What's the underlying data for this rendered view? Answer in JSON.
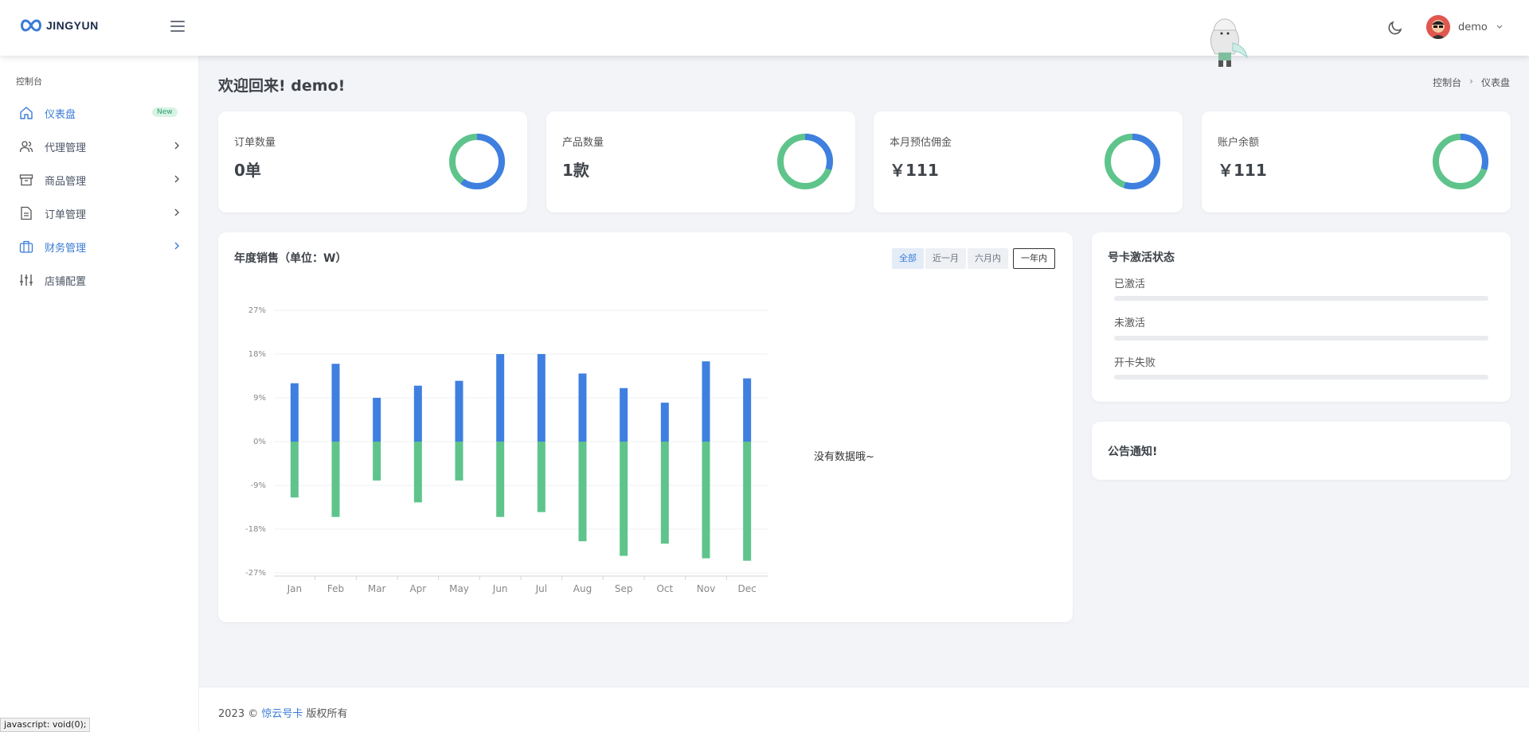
{
  "brand": {
    "name": "JINGYUN"
  },
  "header": {
    "user_name": "demo",
    "icons": [
      "menu-icon",
      "moon-icon",
      "avatar",
      "chevron-down-icon"
    ]
  },
  "sidebar": {
    "section": "控制台",
    "items": [
      {
        "label": "仪表盘",
        "icon": "home-icon",
        "badge": "New",
        "active": true
      },
      {
        "label": "代理管理",
        "icon": "users-icon",
        "chevron": true
      },
      {
        "label": "商品管理",
        "icon": "archive-icon",
        "chevron": true
      },
      {
        "label": "订单管理",
        "icon": "document-icon",
        "chevron": true
      },
      {
        "label": "财务管理",
        "icon": "briefcase-icon",
        "chevron": true,
        "highlight": true
      },
      {
        "label": "店铺配置",
        "icon": "sliders-icon"
      }
    ]
  },
  "page": {
    "title": "欢迎回来! demo!",
    "breadcrumb": [
      "控制台",
      "仪表盘"
    ],
    "breadcrumb_sep": "›"
  },
  "stats": [
    {
      "label": "订单数量",
      "value": "0单",
      "blue_fraction": 0.6
    },
    {
      "label": "产品数量",
      "value": "1款",
      "blue_fraction": 0.3
    },
    {
      "label": "本月预估佣金",
      "value": "￥111",
      "blue_fraction": 0.55
    },
    {
      "label": "账户余额",
      "value": "￥111",
      "blue_fraction": 0.3
    }
  ],
  "sales": {
    "title": "年度销售（单位：W）",
    "tabs": [
      "全部",
      "近一月",
      "六月内",
      "一年内"
    ],
    "active_tab": "全部",
    "empty_text": "没有数据哦~"
  },
  "chart_data": {
    "type": "bar",
    "categories": [
      "Jan",
      "Feb",
      "Mar",
      "Apr",
      "May",
      "Jun",
      "Jul",
      "Aug",
      "Sep",
      "Oct",
      "Nov",
      "Dec"
    ],
    "series": [
      {
        "values": [
          12,
          16,
          9,
          11.5,
          12.5,
          18,
          18,
          14,
          11,
          8,
          16.5,
          13
        ],
        "color": "#3f7fe0"
      },
      {
        "values": [
          -11.5,
          -15.5,
          -8,
          -12.5,
          -8,
          -15.5,
          -14.5,
          -20.5,
          -23.5,
          -21,
          -24,
          -24.5
        ],
        "color": "#5ec48b"
      }
    ],
    "ylim": [
      -27,
      27
    ],
    "yticks": [
      "27%",
      "18%",
      "9%",
      "0%",
      "-9%",
      "-18%",
      "-27%"
    ],
    "ytick_values": [
      27,
      18,
      9,
      0,
      -9,
      -18,
      -27
    ],
    "stacked": true,
    "grid": true
  },
  "activation": {
    "title": "号卡激活状态",
    "rows": [
      {
        "label": "已激活",
        "value": 0
      },
      {
        "label": "未激活",
        "value": 0
      },
      {
        "label": "开卡失败",
        "value": 0
      }
    ]
  },
  "notice": {
    "title": "公告通知!"
  },
  "footer": {
    "year": "2023 ©",
    "link": "惊云号卡",
    "rights": "版权所有"
  },
  "status_bar": {
    "text": "javascript: void(0);"
  },
  "colors": {
    "accent": "#3a7bd5",
    "green": "#5ec48b",
    "bg": "#f3f4f8"
  }
}
